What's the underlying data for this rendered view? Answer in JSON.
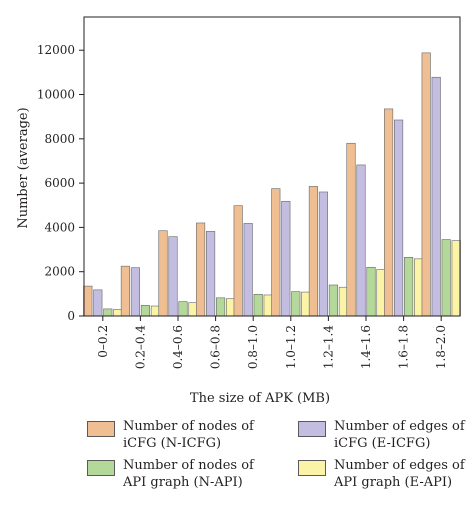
{
  "chart_data": {
    "type": "bar",
    "ylabel": "Number (average)",
    "xlabel": "The size of APK (MB)",
    "categories": [
      "0–0.2",
      "0.2–0.4",
      "0.4–0.6",
      "0.6–0.8",
      "0.8–1.0",
      "1.0–1.2",
      "1.2–1.4",
      "1.4–1.6",
      "1.6–1.8",
      "1.8–2.0"
    ],
    "ylim": [
      0,
      13500
    ],
    "yticks": [
      0,
      2000,
      4000,
      6000,
      8000,
      10000,
      12000
    ],
    "ytick_labels": [
      "0",
      "2000",
      "4000",
      "6000",
      "8000",
      "10000",
      "12000"
    ],
    "series": [
      {
        "name": "Number of nodes of\niCFG (N-ICFG)",
        "color": "#efbf93",
        "values": [
          1350,
          2250,
          3850,
          4200,
          4980,
          5750,
          5850,
          7800,
          9350,
          11880
        ]
      },
      {
        "name": "Number of edges of\niCFG (E-ICFG)",
        "color": "#c4bde2",
        "values": [
          1180,
          2180,
          3580,
          3820,
          4180,
          5180,
          5600,
          6820,
          8850,
          10780
        ]
      },
      {
        "name": "Number of nodes of\nAPI graph (N-API)",
        "color": "#b3d89a",
        "values": [
          320,
          480,
          650,
          820,
          980,
          1100,
          1400,
          2200,
          2650,
          3450
        ]
      },
      {
        "name": "Number of edges of\nAPI graph (E-API)",
        "color": "#fbf3a6",
        "values": [
          300,
          450,
          600,
          780,
          950,
          1080,
          1300,
          2100,
          2580,
          3400
        ]
      }
    ],
    "grid": false,
    "legend_position": "bottom"
  }
}
